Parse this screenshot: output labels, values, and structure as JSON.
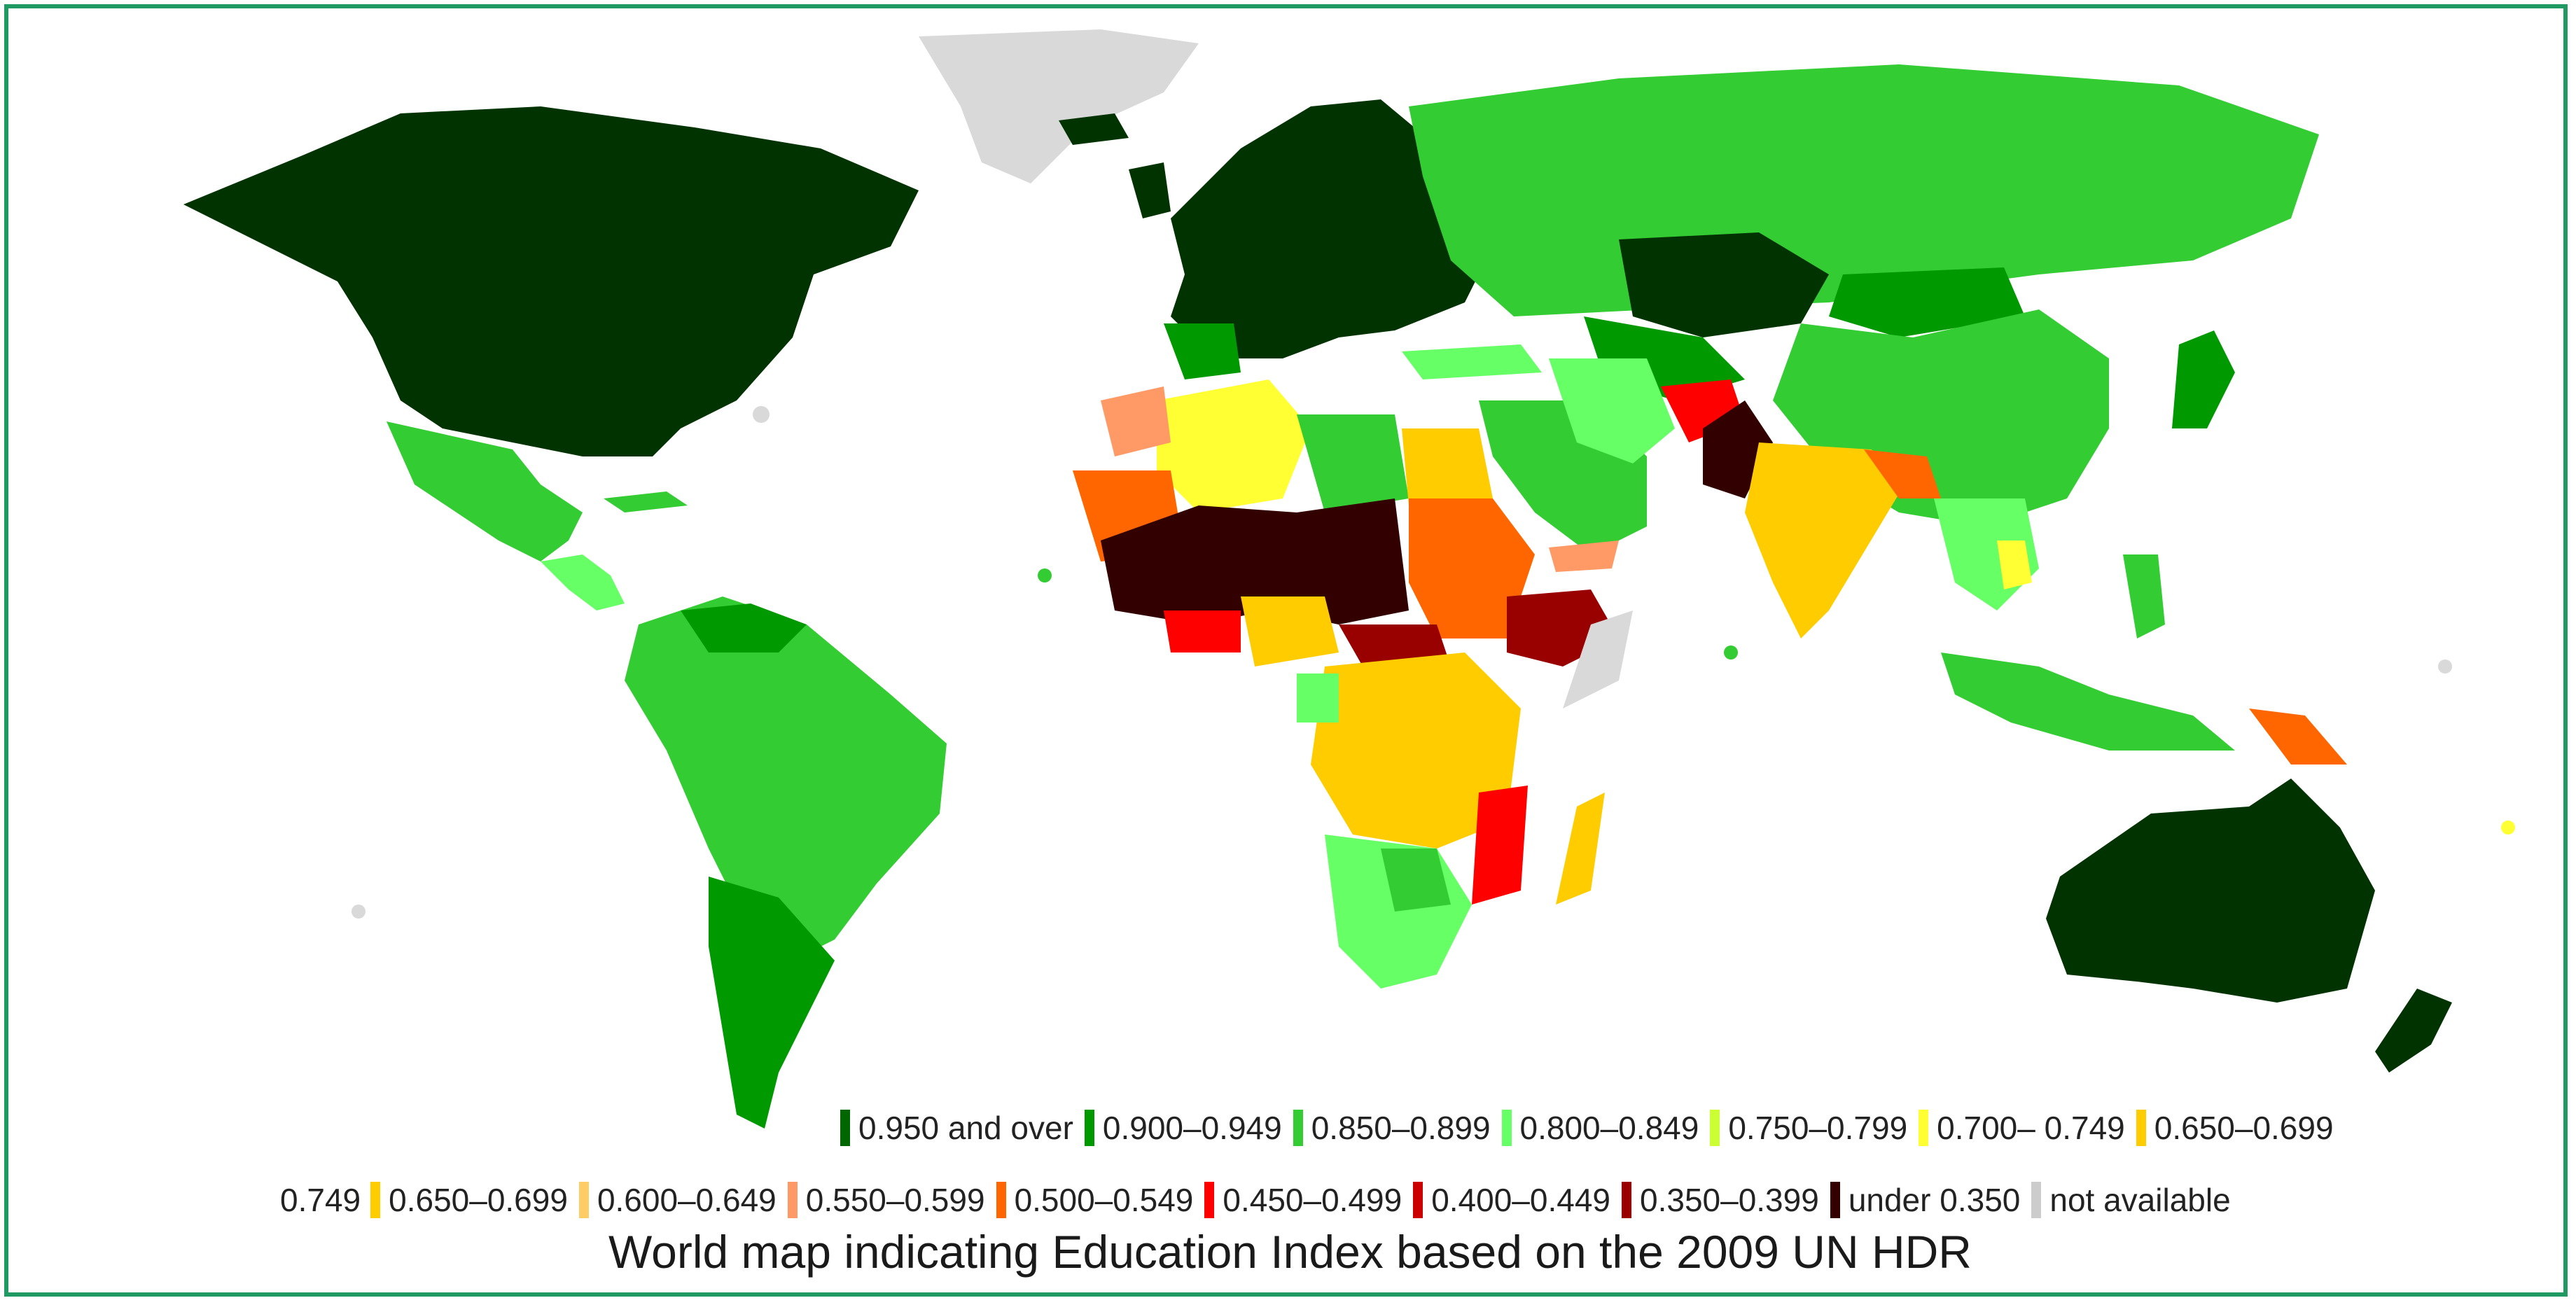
{
  "title": "World map indicating Education Index based on the 2009 UN HDR",
  "colors": {
    "border": "#1f9a63",
    "ocean": "#ffffff",
    "c950": "#003300",
    "c900": "#009900",
    "c850": "#33cc33",
    "c800": "#66ff66",
    "c750": "#ccff33",
    "c700": "#ffff33",
    "c650": "#ffcc00",
    "c600": "#ffcc66",
    "c550": "#ff9966",
    "c500": "#ff6600",
    "c450": "#ff0000",
    "c400": "#cc0000",
    "c350": "#990000",
    "cunder": "#330000",
    "cna": "#d9d9d9"
  },
  "legend": {
    "row1": [
      {
        "label": "0.950 and over",
        "color": "#006600"
      },
      {
        "label": "0.900–0.949",
        "color": "#009900"
      },
      {
        "label": "0.850–0.899",
        "color": "#33cc33"
      },
      {
        "label": "0.800–0.849",
        "color": "#66ff66"
      },
      {
        "label": "0.750–0.799",
        "color": "#ccff33"
      },
      {
        "label": "0.700– 0.749",
        "color": "#ffff33"
      },
      {
        "label": "0.650–0.699",
        "color": "#ffcc00"
      }
    ],
    "row2_fragment": "0.749",
    "row2": [
      {
        "label": "0.650–0.699",
        "color": "#ffcc00"
      },
      {
        "label": "0.600–0.649",
        "color": "#ffcc66"
      },
      {
        "label": "0.550–0.599",
        "color": "#ff9966"
      },
      {
        "label": "0.500–0.549",
        "color": "#ff6600"
      },
      {
        "label": "0.450–0.499",
        "color": "#ff0000"
      },
      {
        "label": "0.400–0.449",
        "color": "#cc0000"
      },
      {
        "label": "0.350–0.399",
        "color": "#990000"
      },
      {
        "label": "under 0.350",
        "color": "#330000"
      },
      {
        "label": "not available",
        "color": "#cccccc"
      }
    ]
  }
}
